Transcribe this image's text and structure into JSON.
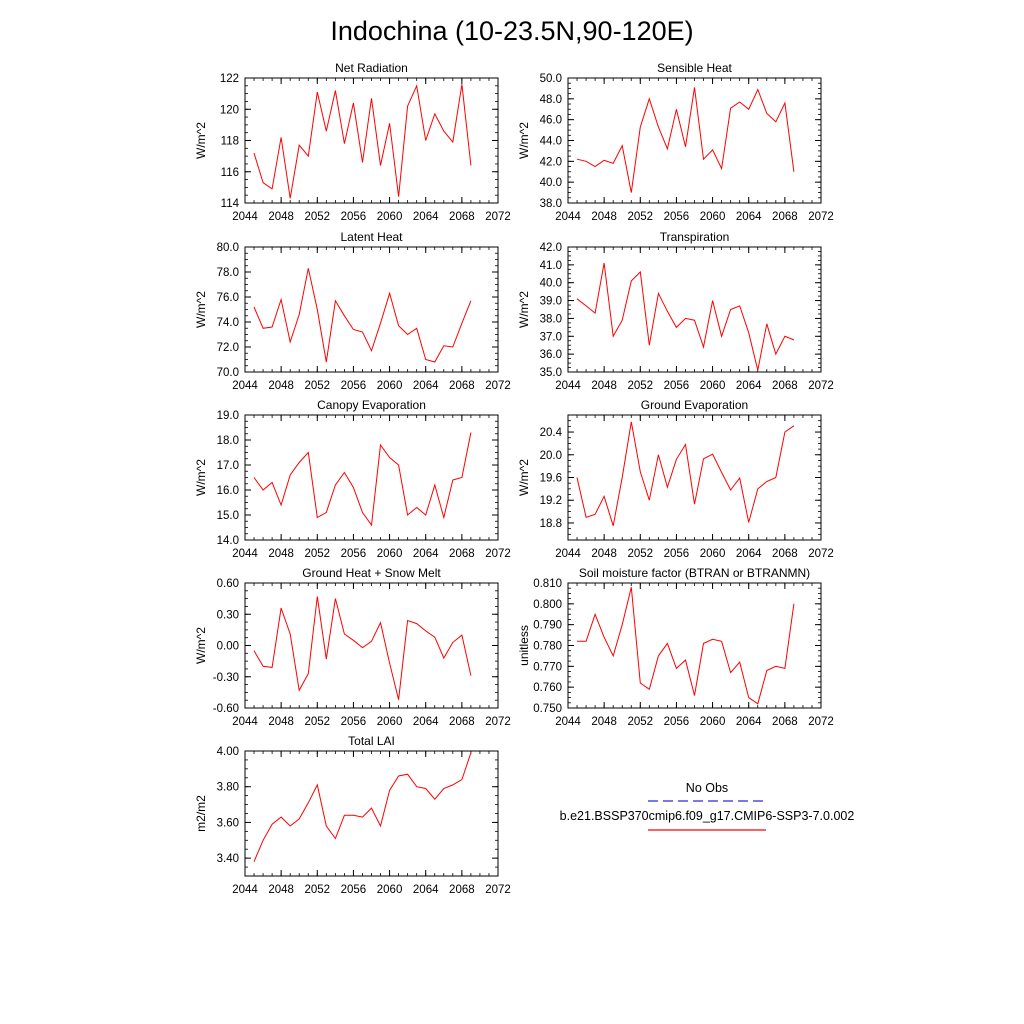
{
  "figure": {
    "title": "Indochina (10-23.5N,90-120E)"
  },
  "legend": {
    "items": [
      {
        "label": "No Obs",
        "color": "#2b2bd6",
        "dash": true
      },
      {
        "label": "b.e21.BSSP370cmip6.f09_g17.CMIP6-SSP3-7.0.002",
        "color": "#ff0000",
        "dash": false
      }
    ]
  },
  "chart_data": [
    {
      "type": "line",
      "title": "Net Radiation",
      "ylabel": "W/m^2",
      "xlim": [
        2044,
        2072
      ],
      "ylim": [
        114,
        122
      ],
      "xticks": [
        2044,
        2048,
        2052,
        2056,
        2060,
        2064,
        2068,
        2072
      ],
      "yticks": [
        "114",
        "116",
        "118",
        "120",
        "122"
      ],
      "yticks_values": [
        114,
        116,
        118,
        120,
        122
      ],
      "color": "#ff0000",
      "x": [
        2045,
        2046,
        2047,
        2048,
        2049,
        2050,
        2051,
        2052,
        2053,
        2054,
        2055,
        2056,
        2057,
        2058,
        2059,
        2060,
        2061,
        2062,
        2063,
        2064,
        2065,
        2066,
        2067,
        2068,
        2069
      ],
      "values": [
        117.2,
        115.3,
        114.9,
        118.2,
        114.3,
        117.7,
        117.0,
        121.1,
        118.6,
        121.2,
        117.8,
        120.4,
        116.6,
        120.7,
        116.4,
        119.1,
        114.4,
        120.2,
        121.5,
        118.0,
        119.7,
        118.6,
        117.9,
        121.6,
        116.4
      ]
    },
    {
      "type": "line",
      "title": "Sensible Heat",
      "ylabel": "W/m^2",
      "xlim": [
        2044,
        2072
      ],
      "ylim": [
        38,
        50
      ],
      "xticks": [
        2044,
        2048,
        2052,
        2056,
        2060,
        2064,
        2068,
        2072
      ],
      "yticks": [
        "38.0",
        "40.0",
        "42.0",
        "44.0",
        "46.0",
        "48.0",
        "50.0"
      ],
      "yticks_values": [
        38,
        40,
        42,
        44,
        46,
        48,
        50
      ],
      "color": "#ff0000",
      "x": [
        2045,
        2046,
        2047,
        2048,
        2049,
        2050,
        2051,
        2052,
        2053,
        2054,
        2055,
        2056,
        2057,
        2058,
        2059,
        2060,
        2061,
        2062,
        2063,
        2064,
        2065,
        2066,
        2067,
        2068,
        2069
      ],
      "values": [
        42.2,
        42.0,
        41.5,
        42.1,
        41.8,
        43.5,
        39.0,
        45.3,
        48.0,
        45.3,
        43.2,
        47.0,
        43.4,
        49.1,
        42.2,
        43.1,
        41.3,
        47.1,
        47.7,
        47.0,
        48.9,
        46.6,
        45.8,
        47.6,
        41.0
      ]
    },
    {
      "type": "line",
      "title": "Latent Heat",
      "ylabel": "W/m^2",
      "xlim": [
        2044,
        2072
      ],
      "ylim": [
        70,
        80
      ],
      "xticks": [
        2044,
        2048,
        2052,
        2056,
        2060,
        2064,
        2068,
        2072
      ],
      "yticks": [
        "70.0",
        "72.0",
        "74.0",
        "76.0",
        "78.0",
        "80.0"
      ],
      "yticks_values": [
        70,
        72,
        74,
        76,
        78,
        80
      ],
      "color": "#ff0000",
      "x": [
        2045,
        2046,
        2047,
        2048,
        2049,
        2050,
        2051,
        2052,
        2053,
        2054,
        2055,
        2056,
        2057,
        2058,
        2059,
        2060,
        2061,
        2062,
        2063,
        2064,
        2065,
        2066,
        2067,
        2068,
        2069
      ],
      "values": [
        75.2,
        73.5,
        73.6,
        75.8,
        72.4,
        74.6,
        78.3,
        75.0,
        70.8,
        75.7,
        74.5,
        73.4,
        73.2,
        71.7,
        73.9,
        76.3,
        73.7,
        73.0,
        73.5,
        71.0,
        70.8,
        72.1,
        72.0,
        73.9,
        75.7
      ]
    },
    {
      "type": "line",
      "title": "Transpiration",
      "ylabel": "W/m^2",
      "xlim": [
        2044,
        2072
      ],
      "ylim": [
        35,
        42
      ],
      "xticks": [
        2044,
        2048,
        2052,
        2056,
        2060,
        2064,
        2068,
        2072
      ],
      "yticks": [
        "35.0",
        "36.0",
        "37.0",
        "38.0",
        "39.0",
        "40.0",
        "41.0",
        "42.0"
      ],
      "yticks_values": [
        35,
        36,
        37,
        38,
        39,
        40,
        41,
        42
      ],
      "color": "#ff0000",
      "x": [
        2045,
        2046,
        2047,
        2048,
        2049,
        2050,
        2051,
        2052,
        2053,
        2054,
        2055,
        2056,
        2057,
        2058,
        2059,
        2060,
        2061,
        2062,
        2063,
        2064,
        2065,
        2066,
        2067,
        2068,
        2069
      ],
      "values": [
        39.1,
        38.7,
        38.3,
        41.1,
        37.0,
        37.9,
        40.1,
        40.6,
        36.5,
        39.4,
        38.4,
        37.5,
        38.0,
        37.9,
        36.4,
        39.0,
        37.0,
        38.5,
        38.7,
        37.2,
        35.1,
        37.7,
        36.0,
        37.0,
        36.8
      ]
    },
    {
      "type": "line",
      "title": "Canopy Evaporation",
      "ylabel": "W/m^2",
      "xlim": [
        2044,
        2072
      ],
      "ylim": [
        14,
        19
      ],
      "xticks": [
        2044,
        2048,
        2052,
        2056,
        2060,
        2064,
        2068,
        2072
      ],
      "yticks": [
        "14.0",
        "15.0",
        "16.0",
        "17.0",
        "18.0",
        "19.0"
      ],
      "yticks_values": [
        14,
        15,
        16,
        17,
        18,
        19
      ],
      "color": "#ff0000",
      "x": [
        2045,
        2046,
        2047,
        2048,
        2049,
        2050,
        2051,
        2052,
        2053,
        2054,
        2055,
        2056,
        2057,
        2058,
        2059,
        2060,
        2061,
        2062,
        2063,
        2064,
        2065,
        2066,
        2067,
        2068,
        2069
      ],
      "values": [
        16.5,
        16.0,
        16.3,
        15.4,
        16.6,
        17.1,
        17.5,
        14.9,
        15.1,
        16.2,
        16.7,
        16.1,
        15.1,
        14.6,
        17.8,
        17.3,
        17.0,
        15.0,
        15.3,
        15.0,
        16.2,
        14.9,
        16.4,
        16.5,
        18.3
      ]
    },
    {
      "type": "line",
      "title": "Ground Evaporation",
      "ylabel": "W/m^2",
      "xlim": [
        2044,
        2072
      ],
      "ylim": [
        18.5,
        20.7
      ],
      "xticks": [
        2044,
        2048,
        2052,
        2056,
        2060,
        2064,
        2068,
        2072
      ],
      "yticks": [
        "18.8",
        "19.2",
        "19.6",
        "20.0",
        "20.4"
      ],
      "yticks_values": [
        18.8,
        19.2,
        19.6,
        20.0,
        20.4
      ],
      "color": "#ff0000",
      "x": [
        2045,
        2046,
        2047,
        2048,
        2049,
        2050,
        2051,
        2052,
        2053,
        2054,
        2055,
        2056,
        2057,
        2058,
        2059,
        2060,
        2061,
        2062,
        2063,
        2064,
        2065,
        2066,
        2067,
        2068,
        2069
      ],
      "values": [
        19.6,
        18.9,
        18.95,
        19.27,
        18.75,
        19.6,
        20.58,
        19.7,
        19.2,
        20.0,
        19.43,
        19.92,
        20.18,
        19.13,
        19.93,
        20.01,
        19.69,
        19.38,
        19.59,
        18.81,
        19.4,
        19.53,
        19.6,
        20.4,
        20.51
      ]
    },
    {
      "type": "line",
      "title": "Ground Heat + Snow Melt",
      "ylabel": "W/m^2",
      "xlim": [
        2044,
        2072
      ],
      "ylim": [
        -0.6,
        0.6
      ],
      "xticks": [
        2044,
        2048,
        2052,
        2056,
        2060,
        2064,
        2068,
        2072
      ],
      "yticks": [
        "-0.60",
        "-0.30",
        "0.00",
        "0.30",
        "0.60"
      ],
      "yticks_values": [
        -0.6,
        -0.3,
        0,
        0.3,
        0.6
      ],
      "color": "#ff0000",
      "x": [
        2045,
        2046,
        2047,
        2048,
        2049,
        2050,
        2051,
        2052,
        2053,
        2054,
        2055,
        2056,
        2057,
        2058,
        2059,
        2060,
        2061,
        2062,
        2063,
        2064,
        2065,
        2066,
        2067,
        2068,
        2069
      ],
      "values": [
        -0.05,
        -0.2,
        -0.21,
        0.36,
        0.11,
        -0.43,
        -0.27,
        0.47,
        -0.13,
        0.45,
        0.11,
        0.05,
        -0.02,
        0.04,
        0.22,
        -0.17,
        -0.52,
        0.24,
        0.21,
        0.14,
        0.08,
        -0.12,
        0.03,
        0.1,
        -0.29
      ]
    },
    {
      "type": "line",
      "title": "Soil moisture factor (BTRAN or BTRANMN)",
      "ylabel": "unitless",
      "xlim": [
        2044,
        2072
      ],
      "ylim": [
        0.75,
        0.81
      ],
      "xticks": [
        2044,
        2048,
        2052,
        2056,
        2060,
        2064,
        2068,
        2072
      ],
      "yticks": [
        "0.750",
        "0.760",
        "0.770",
        "0.780",
        "0.790",
        "0.800",
        "0.810"
      ],
      "yticks_values": [
        0.75,
        0.76,
        0.77,
        0.78,
        0.79,
        0.8,
        0.81
      ],
      "color": "#ff0000",
      "x": [
        2045,
        2046,
        2047,
        2048,
        2049,
        2050,
        2051,
        2052,
        2053,
        2054,
        2055,
        2056,
        2057,
        2058,
        2059,
        2060,
        2061,
        2062,
        2063,
        2064,
        2065,
        2066,
        2067,
        2068,
        2069
      ],
      "values": [
        0.782,
        0.782,
        0.795,
        0.784,
        0.775,
        0.79,
        0.808,
        0.762,
        0.759,
        0.775,
        0.781,
        0.769,
        0.773,
        0.756,
        0.781,
        0.783,
        0.782,
        0.767,
        0.772,
        0.755,
        0.752,
        0.768,
        0.77,
        0.769,
        0.8
      ]
    },
    {
      "type": "line",
      "title": "Total LAI",
      "ylabel": "m2/m2",
      "xlim": [
        2044,
        2072
      ],
      "ylim": [
        3.3,
        4.0
      ],
      "xticks": [
        2044,
        2048,
        2052,
        2056,
        2060,
        2064,
        2068,
        2072
      ],
      "yticks": [
        "3.40",
        "3.60",
        "3.80",
        "4.00"
      ],
      "yticks_values": [
        3.4,
        3.6,
        3.8,
        4.0
      ],
      "color": "#ff0000",
      "x": [
        2045,
        2046,
        2047,
        2048,
        2049,
        2050,
        2051,
        2052,
        2053,
        2054,
        2055,
        2056,
        2057,
        2058,
        2059,
        2060,
        2061,
        2062,
        2063,
        2064,
        2065,
        2066,
        2067,
        2068,
        2069
      ],
      "values": [
        3.38,
        3.5,
        3.59,
        3.63,
        3.58,
        3.62,
        3.71,
        3.81,
        3.58,
        3.51,
        3.64,
        3.64,
        3.63,
        3.68,
        3.58,
        3.78,
        3.86,
        3.87,
        3.8,
        3.79,
        3.73,
        3.79,
        3.81,
        3.84,
        3.99
      ]
    }
  ]
}
